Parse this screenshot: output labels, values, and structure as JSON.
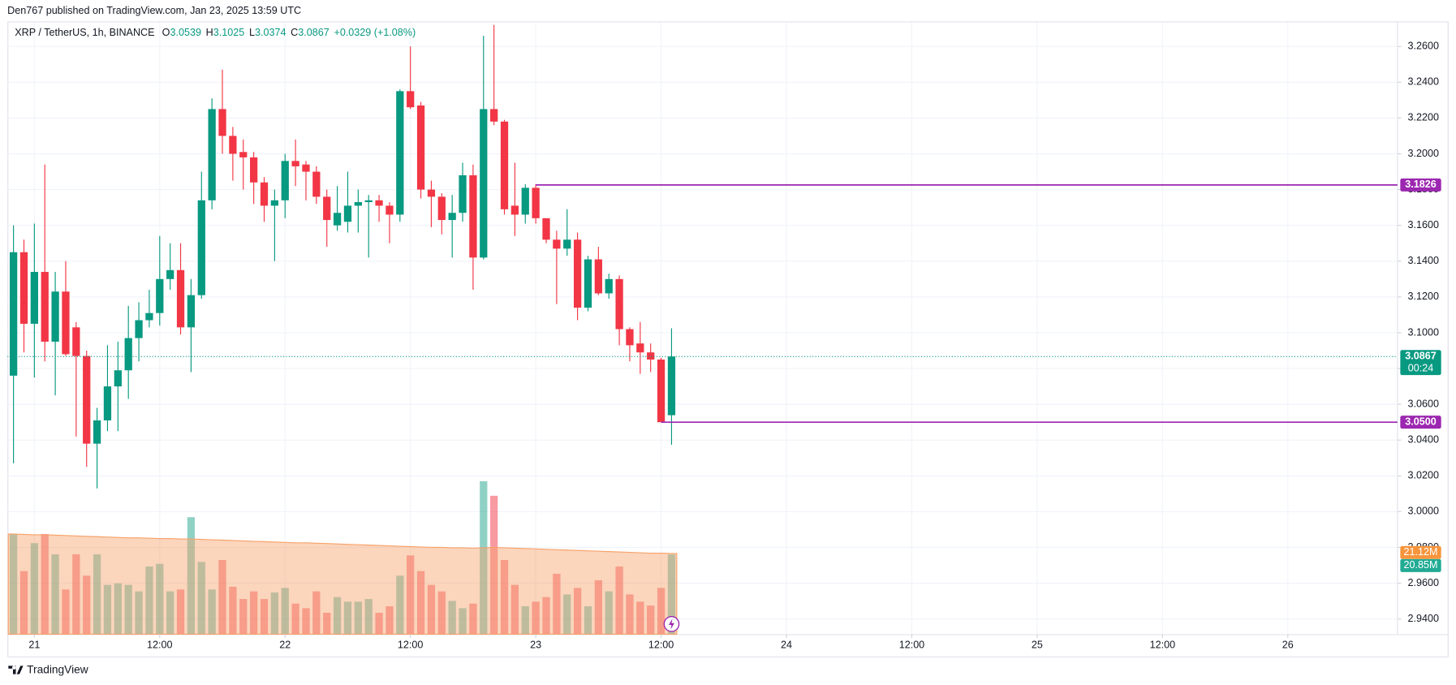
{
  "header": {
    "published": "Den767 published on TradingView.com, Jan 23, 2025 13:59 UTC"
  },
  "footer": {
    "brand": "TradingView"
  },
  "chart_data": {
    "type": "candlestick",
    "title": "XRP / TetherUS, 1h, BINANCE",
    "legend": [
      {
        "key": "O",
        "value": "3.0539"
      },
      {
        "key": "H",
        "value": "3.1025"
      },
      {
        "key": "L",
        "value": "3.0374"
      },
      {
        "key": "C",
        "value": "3.0867"
      }
    ],
    "change": "+0.0329 (+1.08%)",
    "x": [
      -2,
      -1,
      0,
      1,
      2,
      3,
      4,
      5,
      6,
      7,
      8,
      9,
      10,
      11,
      12,
      13,
      14,
      15,
      16,
      17,
      18,
      19,
      20,
      21,
      22,
      23,
      24,
      25,
      26,
      27,
      28,
      29,
      30,
      31,
      32,
      33,
      34,
      35,
      36,
      37,
      38,
      39,
      40,
      41,
      42,
      43,
      44,
      45,
      46,
      47,
      48,
      49,
      50,
      51,
      52,
      53,
      54,
      55,
      56,
      57,
      58,
      59,
      60,
      61
    ],
    "open": [
      3.076,
      3.145,
      3.105,
      3.134,
      3.095,
      3.123,
      3.103,
      3.087,
      3.038,
      3.051,
      3.07,
      3.079,
      3.097,
      3.107,
      3.111,
      3.13,
      3.135,
      3.103,
      3.121,
      3.174,
      3.225,
      3.21,
      3.201,
      3.198,
      3.184,
      3.171,
      3.174,
      3.196,
      3.194,
      3.19,
      3.176,
      3.16,
      3.162,
      3.171,
      3.173,
      3.174,
      3.171,
      3.166,
      3.235,
      3.227,
      3.18,
      3.176,
      3.163,
      3.167,
      3.188,
      3.142,
      3.225,
      3.218,
      3.171,
      3.166,
      3.181,
      3.164,
      3.152,
      3.147,
      3.152,
      3.114,
      3.141,
      3.122,
      3.13,
      3.102,
      3.094,
      3.089,
      3.085,
      3.0539
    ],
    "high": [
      3.16,
      3.152,
      3.161,
      3.194,
      3.134,
      3.14,
      3.106,
      3.09,
      3.058,
      3.093,
      3.095,
      3.115,
      3.117,
      3.124,
      3.154,
      3.15,
      3.15,
      3.13,
      3.19,
      3.231,
      3.247,
      3.215,
      3.208,
      3.201,
      3.187,
      3.18,
      3.2,
      3.208,
      3.196,
      3.193,
      3.18,
      3.182,
      3.19,
      3.18,
      3.177,
      3.177,
      3.173,
      3.236,
      3.26,
      3.229,
      3.185,
      3.178,
      3.177,
      3.195,
      3.194,
      3.266,
      3.272,
      3.219,
      3.195,
      3.183,
      3.183,
      3.164,
      3.157,
      3.169,
      3.156,
      3.143,
      3.148,
      3.133,
      3.132,
      3.103,
      3.106,
      3.094,
      3.086,
      3.1025
    ],
    "low": [
      3.027,
      3.089,
      3.075,
      3.084,
      3.065,
      3.087,
      3.042,
      3.025,
      3.013,
      3.045,
      3.045,
      3.063,
      3.084,
      3.103,
      3.104,
      3.124,
      3.099,
      3.078,
      3.119,
      3.169,
      3.2,
      3.185,
      3.18,
      3.172,
      3.162,
      3.14,
      3.164,
      3.182,
      3.174,
      3.172,
      3.148,
      3.157,
      3.156,
      3.156,
      3.142,
      3.162,
      3.15,
      3.162,
      3.225,
      3.175,
      3.159,
      3.155,
      3.142,
      3.162,
      3.124,
      3.141,
      3.216,
      3.166,
      3.154,
      3.161,
      3.161,
      3.15,
      3.116,
      3.143,
      3.107,
      3.112,
      3.121,
      3.119,
      3.093,
      3.084,
      3.077,
      3.078,
      3.05,
      3.0374
    ],
    "close": [
      3.145,
      3.105,
      3.134,
      3.095,
      3.123,
      3.088,
      3.087,
      3.038,
      3.051,
      3.07,
      3.079,
      3.097,
      3.107,
      3.111,
      3.13,
      3.135,
      3.103,
      3.121,
      3.174,
      3.225,
      3.21,
      3.2,
      3.198,
      3.184,
      3.171,
      3.174,
      3.196,
      3.193,
      3.19,
      3.176,
      3.163,
      3.167,
      3.171,
      3.173,
      3.174,
      3.171,
      3.166,
      3.235,
      3.226,
      3.18,
      3.176,
      3.163,
      3.167,
      3.188,
      3.142,
      3.225,
      3.218,
      3.169,
      3.166,
      3.181,
      3.164,
      3.152,
      3.147,
      3.152,
      3.114,
      3.141,
      3.122,
      3.13,
      3.102,
      3.093,
      3.089,
      3.085,
      3.05,
      3.0867
    ],
    "volume": [
      26.2,
      16.5,
      23.8,
      26.2,
      20.9,
      11.7,
      20.9,
      15.3,
      20.9,
      12.9,
      13.3,
      12.9,
      11.2,
      17.7,
      18.4,
      11.2,
      11.7,
      30.6,
      18.9,
      11.7,
      19.4,
      12.4,
      9.2,
      11.2,
      9.2,
      10.9,
      12.1,
      8.0,
      6.8,
      11.2,
      5.6,
      9.7,
      8.5,
      8.5,
      9.2,
      5.6,
      7.3,
      15.3,
      20.6,
      16.5,
      12.9,
      11.2,
      8.7,
      6.8,
      8.0,
      40.0,
      36.2,
      19.4,
      12.9,
      7.3,
      8.5,
      9.7,
      15.8,
      10.4,
      12.1,
      7.3,
      14.1,
      11.2,
      17.7,
      10.4,
      8.5,
      7.5,
      12.1,
      20.85
    ],
    "volume_ma": [
      26.2,
      26.1,
      26.0,
      26.0,
      25.9,
      25.8,
      25.7,
      25.6,
      25.5,
      25.4,
      25.3,
      25.2,
      25.2,
      25.1,
      25.0,
      25.0,
      24.9,
      24.9,
      24.8,
      24.7,
      24.6,
      24.5,
      24.4,
      24.3,
      24.2,
      24.1,
      24.0,
      23.9,
      23.9,
      23.8,
      23.7,
      23.6,
      23.5,
      23.4,
      23.3,
      23.2,
      23.1,
      23.0,
      22.9,
      22.8,
      22.7,
      22.7,
      22.6,
      22.6,
      22.5,
      22.6,
      22.7,
      22.6,
      22.5,
      22.4,
      22.3,
      22.2,
      22.1,
      22.0,
      21.9,
      21.8,
      21.7,
      21.6,
      21.5,
      21.4,
      21.3,
      21.2,
      21.2,
      21.12
    ],
    "last_volume_label": "20.85M",
    "last_volume_ma_label": "21.12M",
    "volume_ylim": [
      0,
      160
    ],
    "up_color": "#089981",
    "down_color": "#f23645",
    "volume_ma_color": "#f7a26a",
    "xlim": [
      -2.58,
      130.5
    ],
    "xticks": [
      {
        "value": 0,
        "label": "21"
      },
      {
        "value": 12,
        "label": "12:00"
      },
      {
        "value": 24,
        "label": "22"
      },
      {
        "value": 36,
        "label": "12:00"
      },
      {
        "value": 48,
        "label": "23"
      },
      {
        "value": 60,
        "label": "12:00"
      },
      {
        "value": 72,
        "label": "24"
      },
      {
        "value": 84,
        "label": "12:00"
      },
      {
        "value": 96,
        "label": "25"
      },
      {
        "value": 108,
        "label": "12:00"
      },
      {
        "value": 120,
        "label": "26"
      }
    ],
    "ylim": [
      2.9315,
      3.2735
    ],
    "yticks": [
      {
        "value": 2.94,
        "label": "2.9400"
      },
      {
        "value": 2.96,
        "label": "2.9600"
      },
      {
        "value": 2.98,
        "label": "2.9800"
      },
      {
        "value": 3.0,
        "label": "3.0000"
      },
      {
        "value": 3.02,
        "label": "3.0200"
      },
      {
        "value": 3.04,
        "label": "3.0400"
      },
      {
        "value": 3.06,
        "label": "3.0600"
      },
      {
        "value": 3.08,
        "label": "3.0800"
      },
      {
        "value": 3.1,
        "label": "3.1000"
      },
      {
        "value": 3.12,
        "label": "3.1200"
      },
      {
        "value": 3.14,
        "label": "3.1400"
      },
      {
        "value": 3.16,
        "label": "3.1600"
      },
      {
        "value": 3.18,
        "label": "3.1800"
      },
      {
        "value": 3.2,
        "label": "3.2000"
      },
      {
        "value": 3.22,
        "label": "3.2200"
      },
      {
        "value": 3.24,
        "label": "3.2400"
      },
      {
        "value": 3.26,
        "label": "3.2600"
      }
    ],
    "grid": true,
    "levels": [
      {
        "value": 3.1826,
        "label": "3.1826",
        "from": 48,
        "color": "#9c27b0"
      },
      {
        "value": 3.05,
        "label": "3.0500",
        "from": 60,
        "color": "#9c27b0"
      }
    ],
    "last_price": {
      "value": 3.0867,
      "label": "3.0867",
      "countdown": "00:24"
    }
  }
}
